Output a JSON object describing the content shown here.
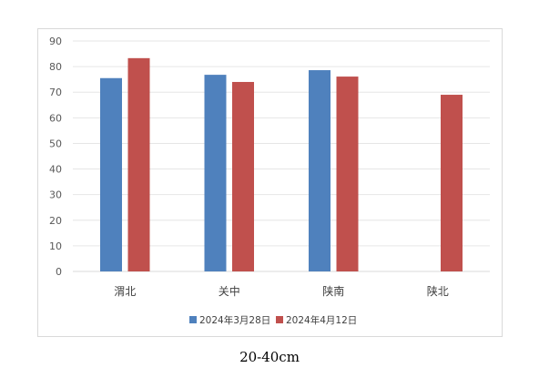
{
  "chart_data": {
    "type": "bar",
    "categories": [
      "渭北",
      "关中",
      "陕南",
      "陕北"
    ],
    "series": [
      {
        "name": "2024年3月28日",
        "color": "#4f81bd",
        "values": [
          75.5,
          76.8,
          78.6,
          null
        ]
      },
      {
        "name": "2024年4月12日",
        "color": "#c0504d",
        "values": [
          83.3,
          74.0,
          76.1,
          69.0
        ]
      }
    ],
    "ylim": [
      0,
      90
    ],
    "yticks": [
      "0",
      "10",
      "20",
      "30",
      "40",
      "50",
      "60",
      "70",
      "80",
      "90"
    ],
    "grid": true,
    "legend": "bottom"
  },
  "caption": "20-40cm"
}
